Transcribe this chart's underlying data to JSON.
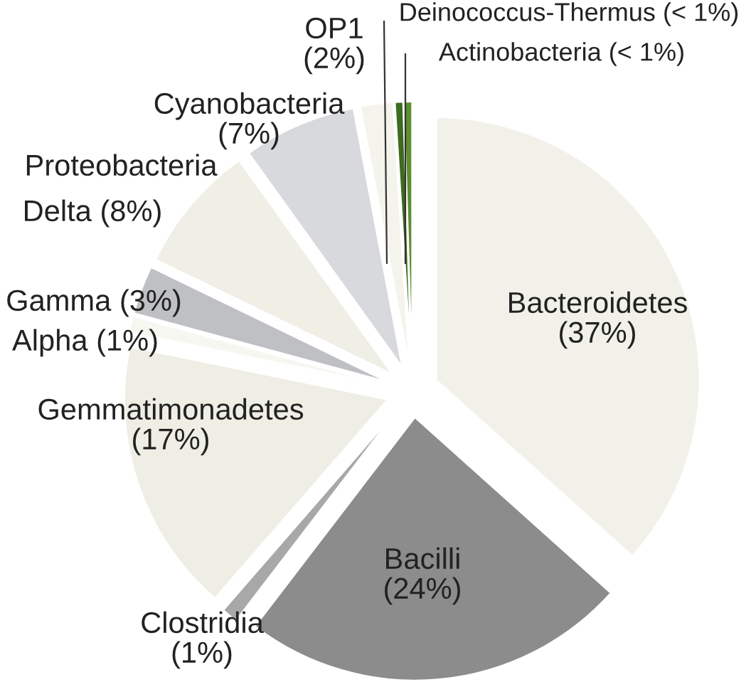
{
  "chart_data": {
    "type": "pie",
    "categories": [
      "Bacteroidetes",
      "Bacilli",
      "Clostridia",
      "Gemmatimonadetes",
      "Alpha",
      "Gamma",
      "Delta",
      "Cyanobacteria",
      "OP1",
      "Deinococcus-Thermus",
      "Actinobacteria"
    ],
    "values": [
      37,
      24,
      1,
      17,
      1,
      3,
      8,
      7,
      2,
      0.5,
      0.5
    ],
    "value_labels": [
      "(37%)",
      "(24%)",
      "(1%)",
      "(17%)",
      "(1%)",
      "(3%)",
      "(8%)",
      "(7%)",
      "(2%)",
      "(< 1%)",
      "(< 1%)"
    ],
    "colors": [
      "#f2f1e9",
      "#8c8c8c",
      "#a8a8a8",
      "#efeee5",
      "#f7f7f2",
      "#bfc0c4",
      "#f0efe6",
      "#d8d9dc",
      "#f4f3ec",
      "#3d6b1f",
      "#5c8f2e"
    ],
    "annotations": [
      "Proteobacteria"
    ]
  }
}
